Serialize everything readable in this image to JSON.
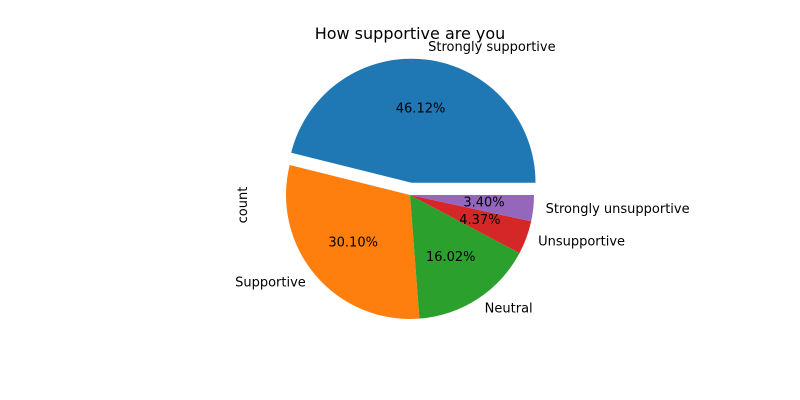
{
  "chart_data": {
    "type": "pie",
    "title": "How supportive are you",
    "ylabel": "count",
    "categories": [
      "Strongly supportive",
      "Supportive",
      "Neutral",
      "Unsupportive",
      "Strongly unsupportive"
    ],
    "values": [
      46.12,
      30.1,
      16.02,
      4.37,
      3.4
    ],
    "value_labels": [
      "46.12%",
      "30.10%",
      "16.02%",
      "4.37%",
      "3.40%"
    ],
    "colors": [
      "#1f77b4",
      "#ff7f0e",
      "#2ca02c",
      "#d62728",
      "#9467bd"
    ],
    "explode": [
      0.1,
      0,
      0,
      0,
      0
    ],
    "start_angle_deg": 0,
    "direction": "counterclockwise",
    "legend": "none"
  }
}
